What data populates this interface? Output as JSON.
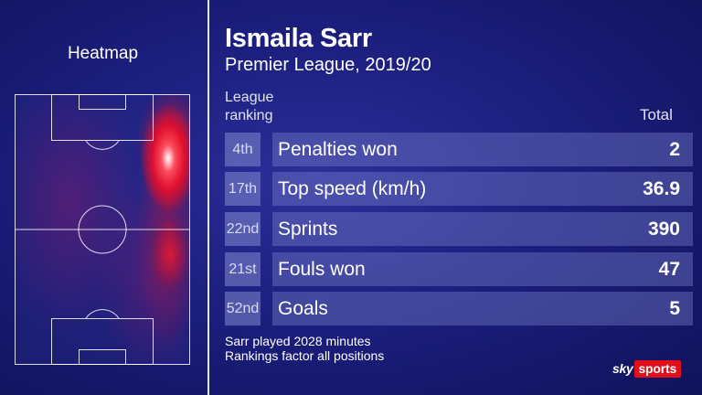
{
  "heatmap": {
    "title": "Heatmap"
  },
  "player": {
    "name": "Ismaila Sarr",
    "competition": "Premier League, 2019/20"
  },
  "headers": {
    "ranking_line1": "League",
    "ranking_line2": "ranking",
    "total": "Total"
  },
  "stats": [
    {
      "rank": "4th",
      "label": "Penalties won",
      "value": "2"
    },
    {
      "rank": "17th",
      "label": "Top speed (km/h)",
      "value": "36.9"
    },
    {
      "rank": "22nd",
      "label": "Sprints",
      "value": "390"
    },
    {
      "rank": "21st",
      "label": "Fouls won",
      "value": "47"
    },
    {
      "rank": "52nd",
      "label": "Goals",
      "value": "5"
    }
  ],
  "footnote": {
    "line1": "Sarr played 2028 minutes",
    "line2": "Rankings factor all positions"
  },
  "logo": {
    "sky": "sky",
    "sports": "sports"
  },
  "colors": {
    "background": "#1c1f7e",
    "heat": "#ff0a1e",
    "brand_red": "#e10e1b"
  }
}
